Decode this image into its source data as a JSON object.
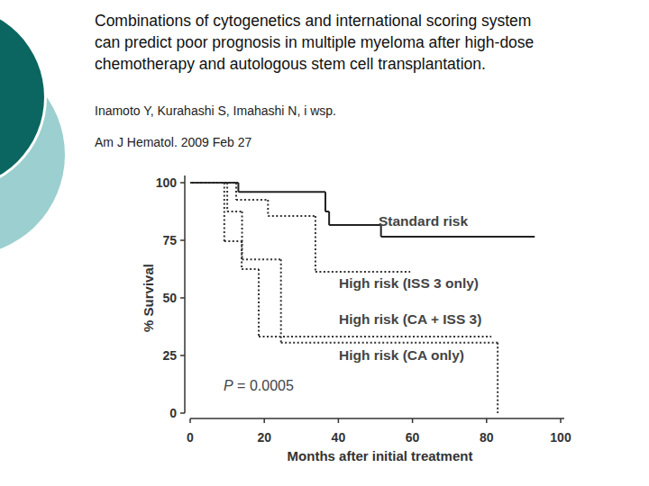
{
  "slide": {
    "title": [
      "Combinations of cytogenetics and international scoring system",
      "can predict poor prognosis in multiple myeloma after high-dose",
      "chemotherapy and autologous stem cell transplantation."
    ],
    "authors": "Inamoto Y, Kurahashi S, Imahashi N, i wsp.",
    "citation": "Am J Hematol. 2009 Feb 27"
  },
  "chart_data": {
    "type": "line",
    "x_label": "Months after initial treatment",
    "y_label": "% Survival",
    "annotations": [
      "P = 0.0005"
    ],
    "xlim": [
      0,
      100
    ],
    "ylim": [
      0,
      100
    ],
    "xticks": [
      0,
      20,
      40,
      60,
      80,
      100
    ],
    "yticks": [
      0,
      25,
      50,
      75,
      100
    ],
    "grid": false,
    "series": [
      {
        "name": "Standard risk",
        "color": "#222222",
        "line_style": "solid",
        "x": [
          0,
          13,
          36.5,
          37.5,
          51.5,
          93
        ],
        "values": [
          100,
          96,
          87.5,
          81.6,
          76.6,
          76.6
        ]
      },
      {
        "name": "High risk (ISS 3 only)",
        "color": "#333333",
        "line_style": "dotted",
        "x": [
          0,
          12.4,
          21,
          33.8,
          59.4
        ],
        "values": [
          100,
          92.6,
          85.5,
          61.3,
          61.3
        ]
      },
      {
        "name": "High risk (CA + ISS 3)",
        "color": "#333333",
        "line_style": "dotted",
        "x": [
          0,
          9.2,
          13.9,
          18.5,
          81.3
        ],
        "values": [
          100,
          74.6,
          62.5,
          33.2,
          33.2
        ]
      },
      {
        "name": "High risk (CA only)",
        "color": "#333333",
        "line_style": "dotted",
        "x": [
          0,
          10,
          14,
          24.5,
          83,
          83
        ],
        "values": [
          100,
          87.5,
          66.7,
          30.6,
          30.6,
          0
        ]
      }
    ]
  }
}
